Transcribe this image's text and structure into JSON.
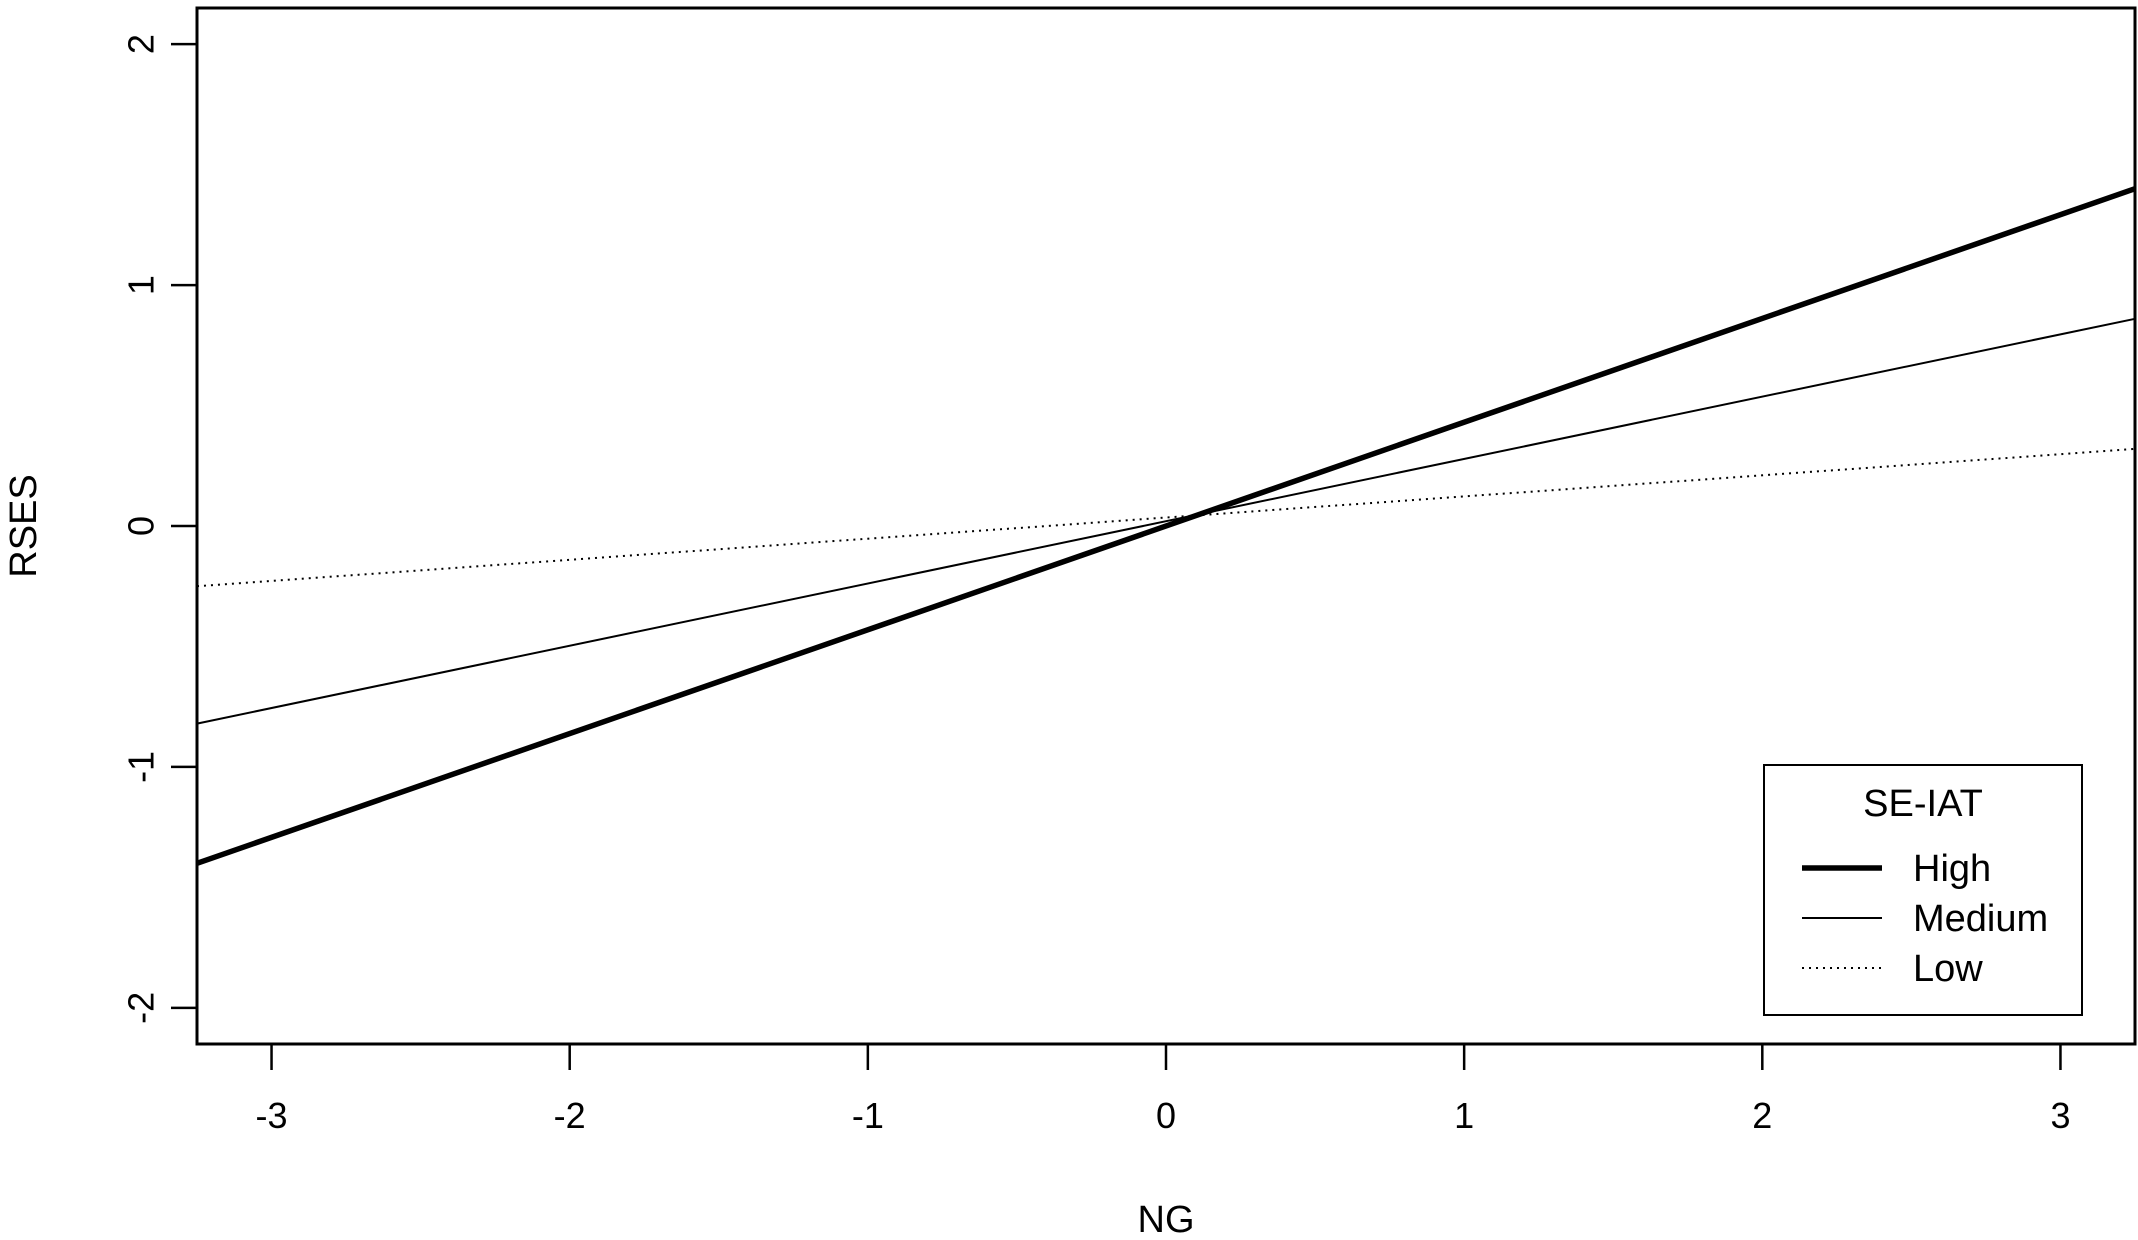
{
  "chart_data": {
    "type": "line",
    "title": "",
    "xlabel": "NG",
    "ylabel": "RSES",
    "xlim": [
      -3.25,
      3.25
    ],
    "ylim": [
      -2.15,
      2.15
    ],
    "xticks": [
      -3,
      -2,
      -1,
      0,
      1,
      2,
      3
    ],
    "yticks": [
      -2,
      -1,
      0,
      1,
      2
    ],
    "xtick_labels": [
      "-3",
      "-2",
      "-1",
      "0",
      "1",
      "2",
      "3"
    ],
    "ytick_labels": [
      "-2",
      "-1",
      "0",
      "1",
      "2"
    ],
    "grid": false,
    "legend_placement": "bottom-right",
    "legend_title": "SE-IAT",
    "series": [
      {
        "name": "High",
        "style": "thick",
        "x": [
          -3.25,
          3.25
        ],
        "y": [
          -1.4,
          1.4
        ]
      },
      {
        "name": "Medium",
        "style": "solid",
        "x": [
          -3.25,
          3.25
        ],
        "y": [
          -0.82,
          0.86
        ]
      },
      {
        "name": "Low",
        "style": "dotted",
        "x": [
          -3.25,
          3.25
        ],
        "y": [
          -0.25,
          0.32
        ]
      }
    ],
    "colors": {
      "line": "#000000",
      "background": "#ffffff"
    }
  }
}
